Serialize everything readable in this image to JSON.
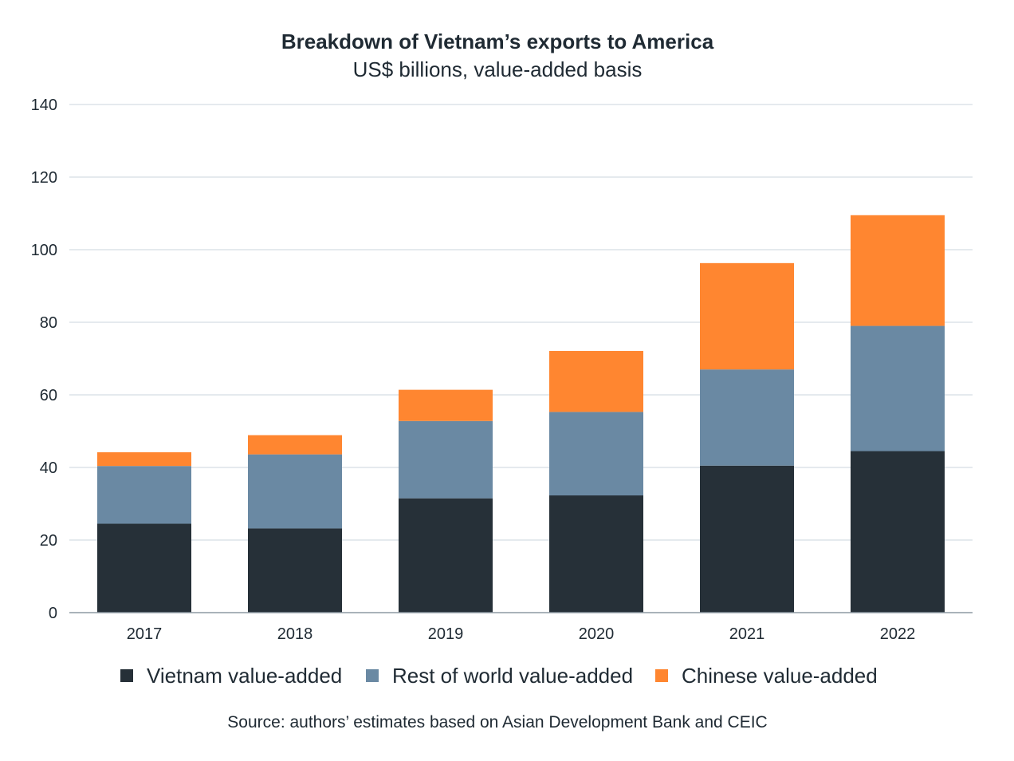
{
  "chart_data": {
    "type": "bar",
    "stacked": true,
    "title": "Breakdown of Vietnam’s exports to America",
    "subtitle": "US$ billions, value-added basis",
    "categories": [
      "2017",
      "2018",
      "2019",
      "2020",
      "2021",
      "2022"
    ],
    "series": [
      {
        "name": "Vietnam value-added",
        "color": "#263038",
        "values": [
          24.5,
          23.2,
          31.5,
          32.3,
          40.5,
          44.5
        ]
      },
      {
        "name": "Rest of world value-added",
        "color": "#6a89a3",
        "values": [
          15.9,
          20.4,
          21.3,
          23.0,
          26.5,
          34.5
        ]
      },
      {
        "name": "Chinese value-added",
        "color": "#ff8630",
        "values": [
          3.8,
          5.3,
          8.6,
          16.8,
          29.3,
          30.5
        ]
      }
    ],
    "ylim": [
      0,
      140
    ],
    "yticks": [
      0,
      20,
      40,
      60,
      80,
      100,
      120,
      140
    ],
    "xlabel": "",
    "ylabel": "",
    "grid": true,
    "legend": "bottom",
    "source": "Source: authors’ estimates based on Asian Development Bank and CEIC"
  }
}
